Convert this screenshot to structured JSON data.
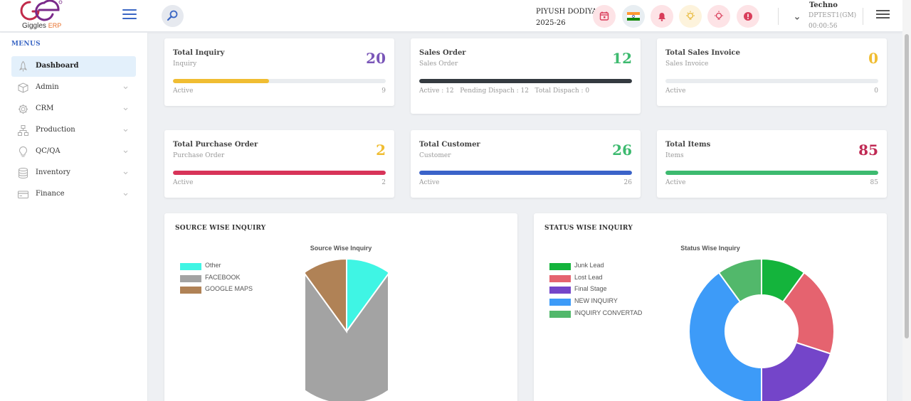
{
  "header": {
    "logo_text": "Giggles",
    "logo_erp": "ERP",
    "user_name": "PIYUSH DODIYA",
    "financial_year": "2025-26",
    "company": "Techno",
    "company_code": "DPTEST1(GM)",
    "timer": "00:00:56",
    "icons": [
      {
        "name": "calendar-icon",
        "bg": "#fde3e6",
        "fg": "#d93d5a"
      },
      {
        "name": "india-flag-icon",
        "bg": "#e8eef2",
        "fg": "#ff9933"
      },
      {
        "name": "bell-icon",
        "bg": "#fde3e6",
        "fg": "#d93d5a"
      },
      {
        "name": "bulb-icon",
        "bg": "#fdf3dc",
        "fg": "#e7b93a"
      },
      {
        "name": "bulb-alert-icon",
        "bg": "#fde3e6",
        "fg": "#d93d5a"
      },
      {
        "name": "alert-icon",
        "bg": "#fde3e6",
        "fg": "#d93d5a"
      }
    ]
  },
  "sidebar": {
    "menus_label": "MENUS",
    "items": [
      {
        "label": "Dashboard",
        "icon": "rocket-icon",
        "active": true,
        "has_children": false
      },
      {
        "label": "Admin",
        "icon": "box-icon",
        "active": false,
        "has_children": true
      },
      {
        "label": "CRM",
        "icon": "gear-icon",
        "active": false,
        "has_children": true
      },
      {
        "label": "Production",
        "icon": "sitemap-icon",
        "active": false,
        "has_children": true
      },
      {
        "label": "QC/QA",
        "icon": "bulb-icon",
        "active": false,
        "has_children": true
      },
      {
        "label": "Inventory",
        "icon": "database-icon",
        "active": false,
        "has_children": true
      },
      {
        "label": "Finance",
        "icon": "card-icon",
        "active": false,
        "has_children": true
      }
    ]
  },
  "cards": [
    {
      "title": "Total Inquiry",
      "subtitle": "Inquiry",
      "value": "20",
      "value_color": "#7a56b8",
      "status": "Active",
      "count": "9",
      "progress": 0.45,
      "bar_color": "#f0bd32"
    },
    {
      "title": "Sales Order",
      "subtitle": "Sales Order",
      "value": "12",
      "value_color": "#3dba6f",
      "status": "Active : 12   Pending Dispach : 12   Total Dispach : 0",
      "count": "",
      "progress": 1.0,
      "bar_color": "#343a40"
    },
    {
      "title": "Total Sales Invoice",
      "subtitle": "Sales Invoice",
      "value": "0",
      "value_color": "#f0bd32",
      "status": "Active",
      "count": "0",
      "progress": 0,
      "bar_color": "#e9ecef"
    },
    {
      "title": "Total Purchase Order",
      "subtitle": "Purchase Order",
      "value": "2",
      "value_color": "#f0bd32",
      "status": "Active",
      "count": "2",
      "progress": 1.0,
      "bar_color": "#d83459"
    },
    {
      "title": "Total Customer",
      "subtitle": "Customer",
      "value": "26",
      "value_color": "#3dba6f",
      "status": "Active",
      "count": "26",
      "progress": 1.0,
      "bar_color": "#3b63c9"
    },
    {
      "title": "Total Items",
      "subtitle": "Items",
      "value": "85",
      "value_color": "#c02a54",
      "status": "Active",
      "count": "85",
      "progress": 1.0,
      "bar_color": "#3dba6f"
    }
  ],
  "panels": {
    "source_title": "SOURCE WISE INQUIRY",
    "status_title": "STATUS WISE INQUIRY"
  },
  "chart_data": [
    {
      "type": "pie",
      "title": "Source Wise Inquiry",
      "legend_position": "top-left",
      "categories": [
        "Other",
        "FACEBOOK",
        "GOOGLE MAPS"
      ],
      "values": [
        2,
        16,
        2
      ],
      "colors": [
        "#3ff5e4",
        "#a3a3a3",
        "#b08256"
      ]
    },
    {
      "type": "doughnut",
      "title": "Status Wise Inquiry",
      "legend_position": "top-left",
      "categories": [
        "Junk Lead",
        "Lost Lead",
        "Final Stage",
        "NEW INQUIRY",
        "INQUIRY CONVERTAD"
      ],
      "values": [
        2,
        4,
        4,
        8,
        2
      ],
      "colors": [
        "#14b43c",
        "#e5636f",
        "#7445c9",
        "#3d9bf8",
        "#52b86b"
      ]
    }
  ]
}
